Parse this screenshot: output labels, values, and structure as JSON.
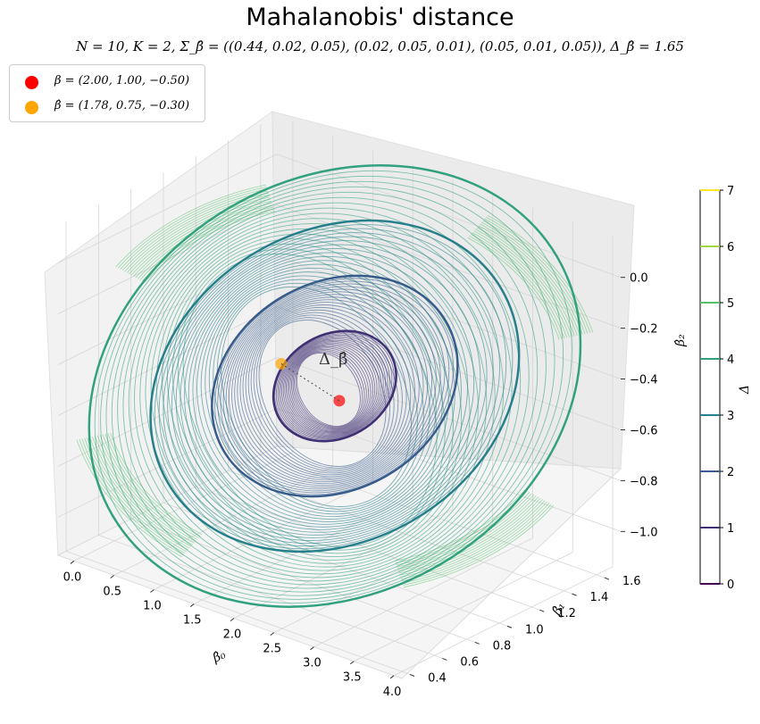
{
  "title": "Mahalanobis' distance",
  "subtitle": "N = 10, K = 2, Σ_β̂ = ((0.44, 0.02, 0.05), (0.02, 0.05, 0.01), (0.05, 0.01, 0.05)), Δ_β̂ = 1.65",
  "legend": [
    {
      "label": "β = (2.00, 1.00, −0.50)",
      "color": "#ff0000"
    },
    {
      "label": "β̂ = (1.78, 0.75, −0.30)",
      "color": "#ffa500"
    }
  ],
  "colors": {
    "viridis_dark": "#440154",
    "viridis_mid": "#21918c",
    "viridis_light": "#b5de2b",
    "beta_true": "#ff0000",
    "beta_hat": "#ffa500"
  },
  "chart_data": {
    "type": "scatter",
    "projection": "3d",
    "title": "Mahalanobis' distance",
    "xlabel": "β̂₀",
    "ylabel": "β̂₁",
    "zlabel": "β̂₂",
    "xlim": [
      -0.2,
      4.1
    ],
    "ylim": [
      0.35,
      1.7
    ],
    "zlim": [
      -1.15,
      0.15
    ],
    "x_ticks": [
      "0.0",
      "0.5",
      "1.0",
      "1.5",
      "2.0",
      "2.5",
      "3.0",
      "3.5",
      "4.0"
    ],
    "y_ticks": [
      "0.4",
      "0.6",
      "0.8",
      "1.0",
      "1.2",
      "1.4",
      "1.6"
    ],
    "z_ticks": [
      "−1.0",
      "−0.8",
      "−0.6",
      "−0.4",
      "−0.2",
      "0.0"
    ],
    "points": [
      {
        "name": "β",
        "x": 2.0,
        "y": 1.0,
        "z": -0.5,
        "color": "#ff0000"
      },
      {
        "name": "β̂",
        "x": 1.78,
        "y": 0.75,
        "z": -0.3,
        "color": "#ffa500"
      }
    ],
    "annotation": "Δ_β̂",
    "surfaces": [
      {
        "level": 1,
        "description": "ellipsoid"
      },
      {
        "level": 2,
        "description": "ellipsoid"
      },
      {
        "level": 3,
        "description": "ellipsoid"
      },
      {
        "level": 4,
        "description": "ellipsoid"
      },
      {
        "level": 5,
        "description": "clipped shell"
      }
    ],
    "colorbar": {
      "label": "Δ",
      "ticks": [
        "0",
        "1",
        "2",
        "3",
        "4",
        "5",
        "6",
        "7"
      ],
      "range": [
        0,
        7
      ],
      "colormap": "viridis"
    },
    "grid": true,
    "legend_position": "top-left"
  }
}
